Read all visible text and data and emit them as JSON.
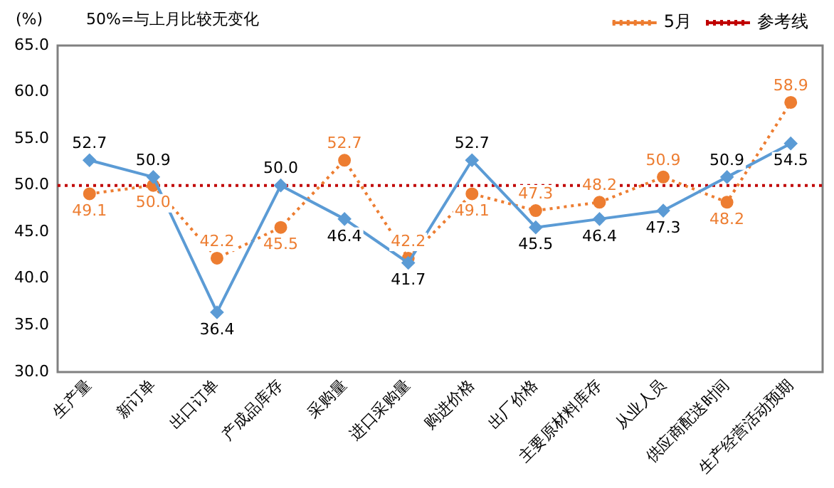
{
  "chart_data": {
    "type": "line",
    "ylabel": "(%)",
    "annotations": [
      "50%=与上月比较无变化"
    ],
    "categories": [
      "生产量",
      "新订单",
      "出口订单",
      "产成品库存",
      "采购量",
      "进口采购量",
      "购进价格",
      "出厂价格",
      "主要原材料库存",
      "从业人员",
      "供应商配送时间",
      "生产经营活动预期"
    ],
    "series": [
      {
        "color": "#5b9bd5",
        "marker": "diamond",
        "line_style": "solid",
        "values": [
          52.7,
          50.9,
          36.4,
          50.0,
          46.4,
          41.7,
          52.7,
          45.5,
          46.4,
          47.3,
          50.9,
          54.5
        ],
        "value_labels": [
          "52.7",
          "50.9",
          "36.4",
          "50.0",
          "46.4",
          "41.7",
          "52.7",
          "45.5",
          "46.4",
          "47.3",
          "50.9",
          "54.5"
        ]
      },
      {
        "name": "5月",
        "color": "#ed7d31",
        "marker": "circle",
        "line_style": "dotted",
        "values": [
          49.1,
          50.0,
          42.2,
          45.5,
          52.7,
          42.2,
          49.1,
          47.3,
          48.2,
          50.9,
          48.2,
          58.9
        ],
        "value_labels": [
          "49.1",
          "50.0",
          "42.2",
          "45.5",
          "52.7",
          "42.2",
          "49.1",
          "47.3",
          "48.2",
          "50.9",
          "48.2",
          "58.9"
        ]
      }
    ],
    "ref_lines": [
      {
        "axis": "y",
        "value": 50,
        "label": "参考线",
        "color": "#c00000",
        "line_style": "dotted"
      }
    ],
    "ylim": [
      30,
      65
    ],
    "yticks": [
      {
        "value": 30,
        "label": "30.0"
      },
      {
        "value": 35,
        "label": "35.0"
      },
      {
        "value": 40,
        "label": "40.0"
      },
      {
        "value": 45,
        "label": "45.0"
      },
      {
        "value": 50,
        "label": "50.0"
      },
      {
        "value": 55,
        "label": "55.0"
      },
      {
        "value": 60,
        "label": "60.0"
      },
      {
        "value": 65,
        "label": "65.0"
      }
    ],
    "grid": false,
    "legend": "top right"
  }
}
